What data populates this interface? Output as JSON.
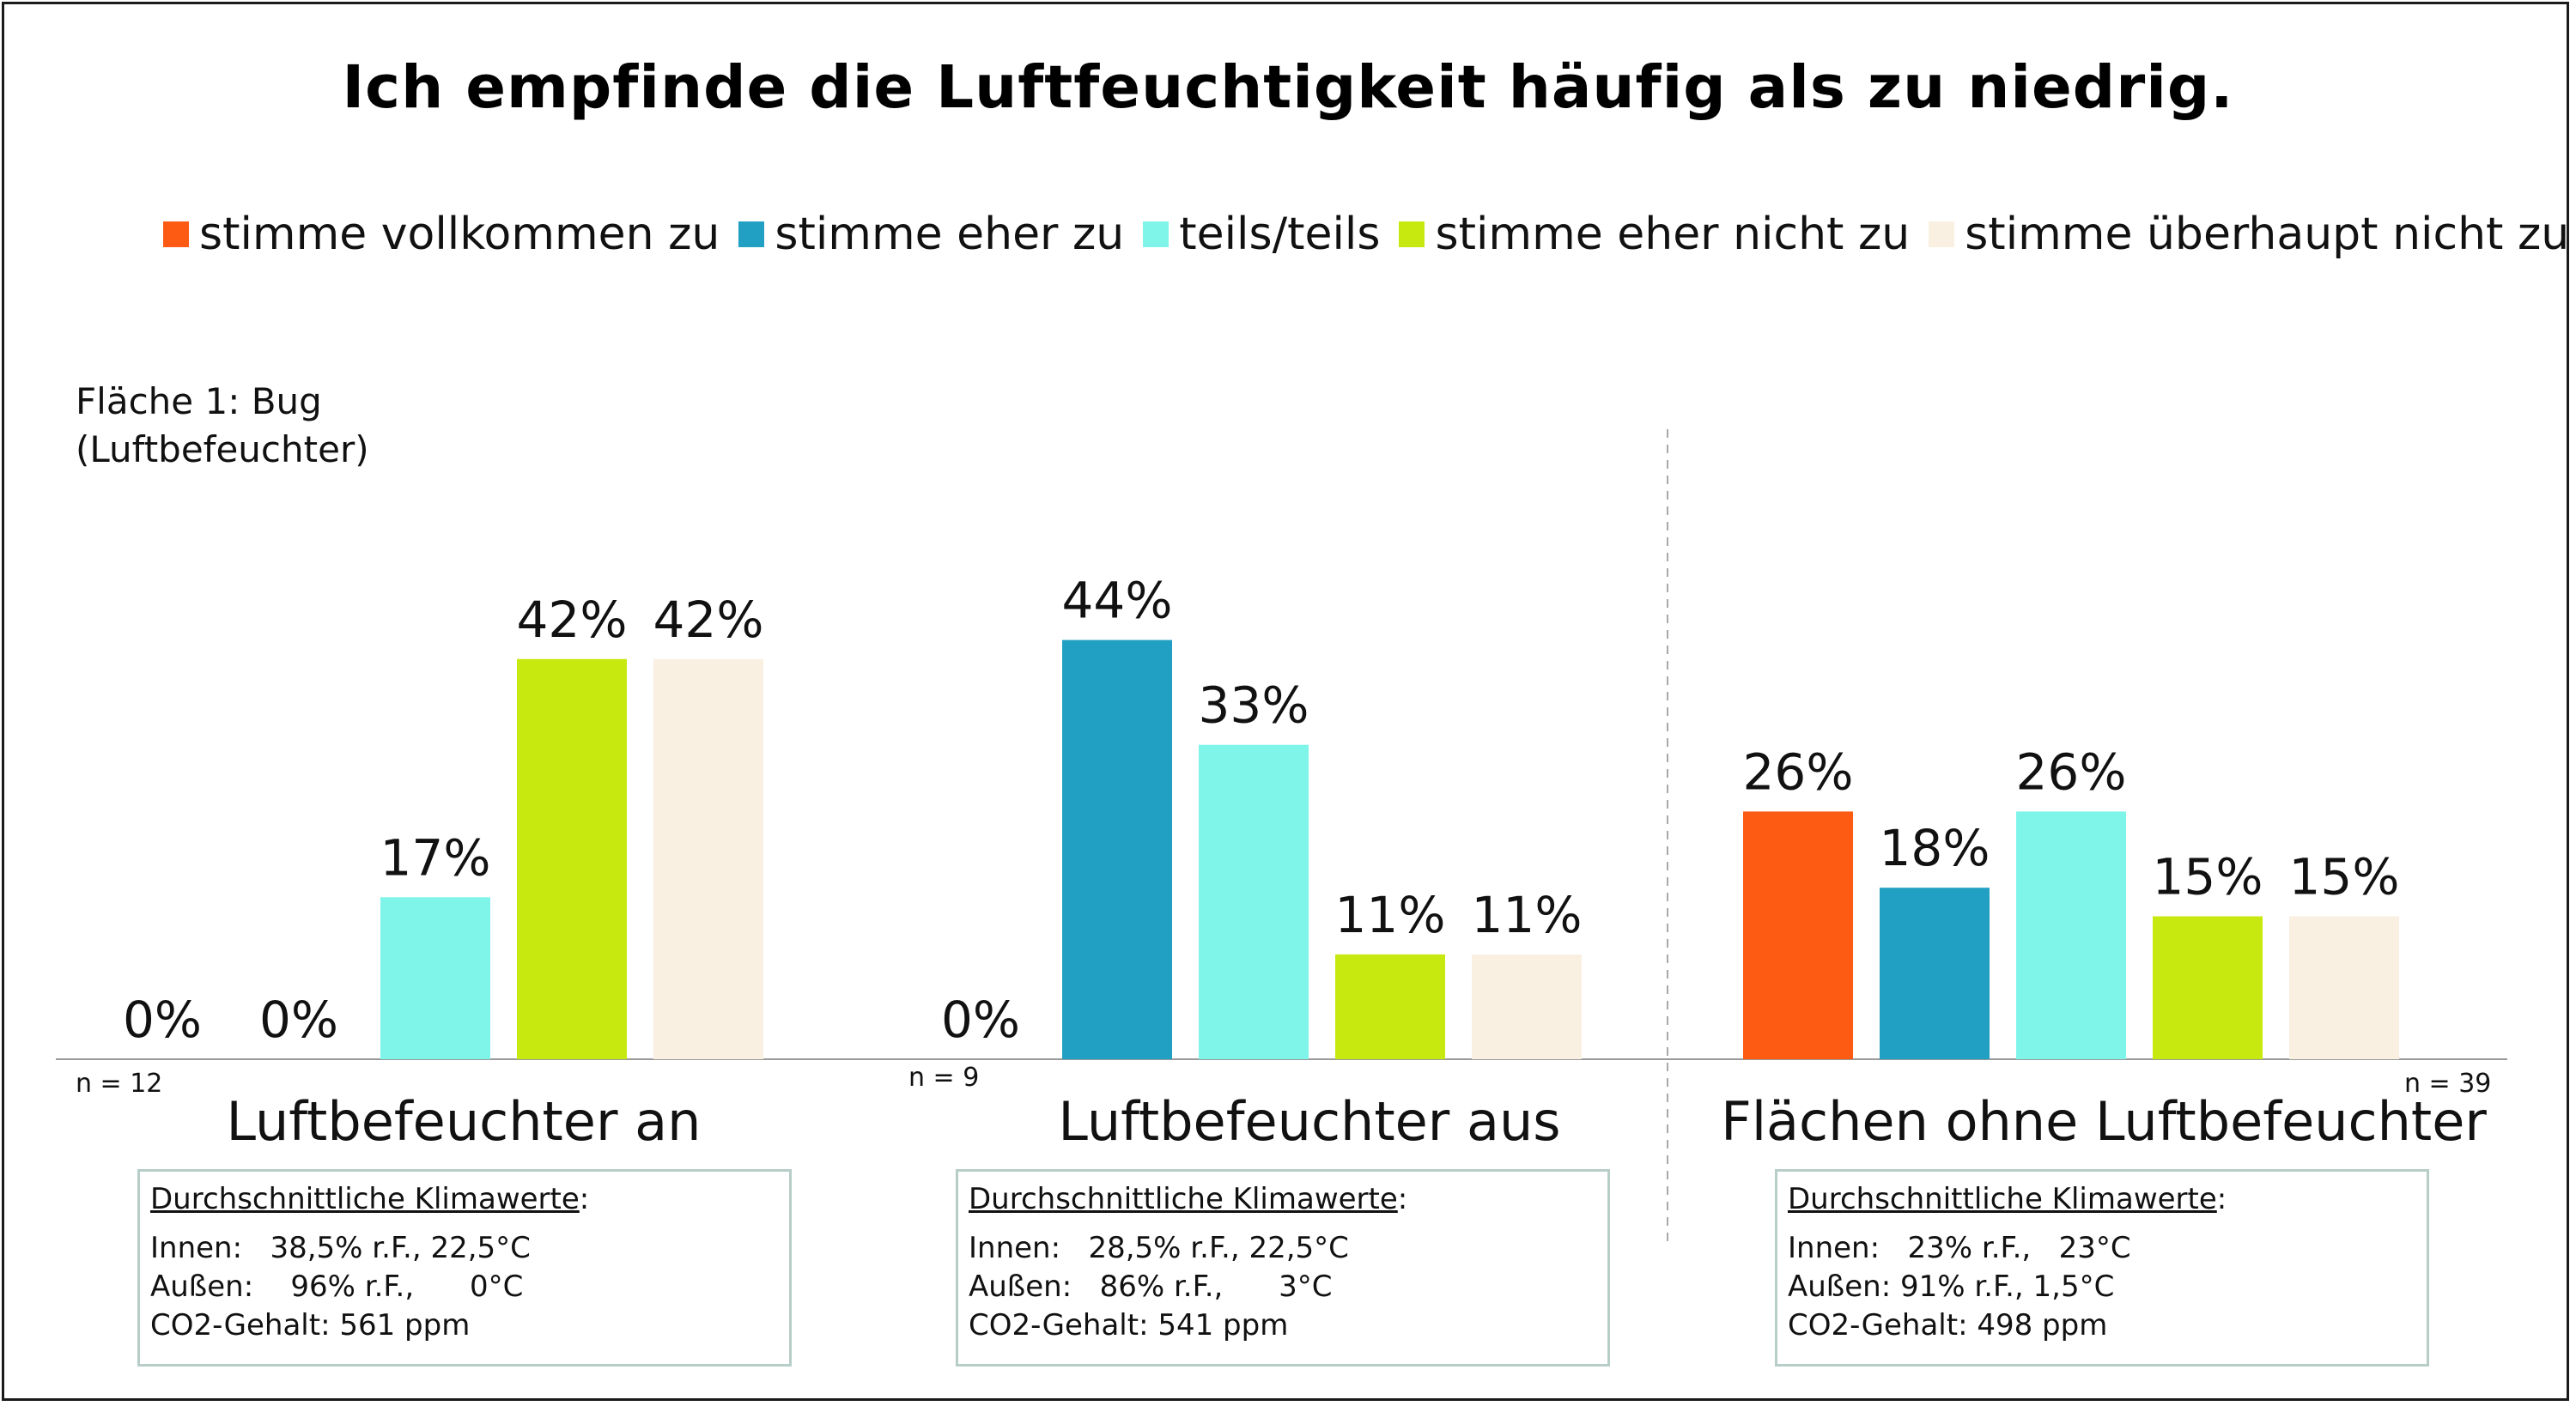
{
  "chart_data": {
    "type": "bar",
    "title": "Ich empfinde die Luftfeuchtigkeit häufig als zu niedrig.",
    "subtitle": [
      "Fläche 1: Bug",
      "(Luftbefeuchter)"
    ],
    "series": [
      {
        "name": "stimme vollkommen zu",
        "color": "#fd5a14",
        "values": [
          0,
          0,
          26
        ]
      },
      {
        "name": "stimme eher zu",
        "color": "#22a0c3",
        "values": [
          0,
          44,
          18
        ]
      },
      {
        "name": "teils/teils",
        "color": "#7ff5e9",
        "values": [
          17,
          33,
          26
        ]
      },
      {
        "name": "stimme eher nicht zu",
        "color": "#c8e90f",
        "values": [
          42,
          11,
          15
        ]
      },
      {
        "name": "stimme überhaupt nicht zu",
        "color": "#f9f0e1",
        "values": [
          42,
          11,
          15
        ]
      }
    ],
    "categories": [
      "Luftbefeuchter an",
      "Luftbefeuchter aus",
      "Flächen ohne Luftbefeuchter"
    ],
    "value_labels": [
      [
        "0%",
        "0%",
        "17%",
        "42%",
        "42%"
      ],
      [
        "0%",
        "44%",
        "33%",
        "11%",
        "11%"
      ],
      [
        "26%",
        "18%",
        "26%",
        "15%",
        "15%"
      ]
    ],
    "n_labels": [
      "n = 12",
      "n = 9",
      "n = 39"
    ],
    "ylim": [
      0,
      50
    ],
    "grid": false,
    "legend_position": "top",
    "info_boxes": [
      {
        "heading": "Durchschnittliche Klimawerte",
        "heading_suffix": ":",
        "innen": "Innen:   38,5% r.F., 22,5°C",
        "aussen": "Außen:    96% r.F.,      0°C",
        "co2": "CO2-Gehalt: 561 ppm"
      },
      {
        "heading": "Durchschnittliche Klimawerte",
        "heading_suffix": ":",
        "innen": "Innen:   28,5% r.F., 22,5°C",
        "aussen": "Außen:   86% r.F.,      3°C",
        "co2": "CO2-Gehalt: 541 ppm"
      },
      {
        "heading": "Durchschnittliche Klimawerte",
        "heading_suffix": ":",
        "innen": "Innen:   23% r.F.,   23°C",
        "aussen": "Außen: 91% r.F., 1,5°C",
        "co2": "CO2-Gehalt: 498 ppm"
      }
    ]
  }
}
